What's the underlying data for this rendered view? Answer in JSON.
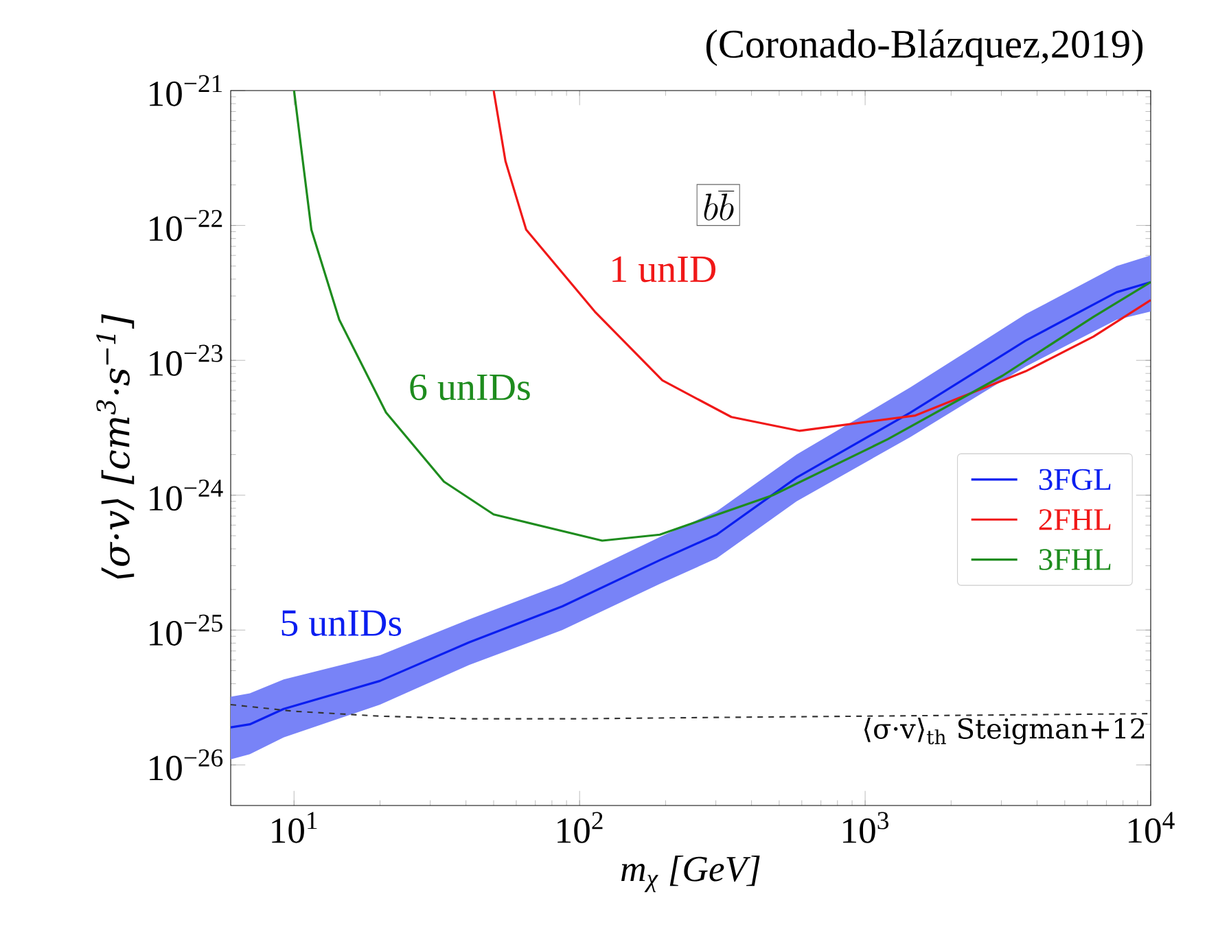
{
  "chart_data": {
    "type": "line",
    "title": "(Coronado-Blázquez,2019)",
    "xlabel": "m$_{χ}$ [GeV]",
    "ylabel": "⟨σ·v⟩ [cm$^{3}$·s$^{−1}$]",
    "log": "xy",
    "xlim": [
      6,
      10000
    ],
    "ylim": [
      5e-27,
      1e-21
    ],
    "xticks": [
      {
        "value": 10,
        "label": "10$^{1}$"
      },
      {
        "value": 100,
        "label": "10$^{2}$"
      },
      {
        "value": 1000,
        "label": "10$^{3}$"
      },
      {
        "value": 10000,
        "label": "10$^{4}$"
      }
    ],
    "yticks": [
      {
        "value": 1e-26,
        "label": "10$^{−26}$"
      },
      {
        "value": 1e-25,
        "label": "10$^{−25}$"
      },
      {
        "value": 1e-24,
        "label": "10$^{−24}$"
      },
      {
        "value": 1e-23,
        "label": "10$^{−23}$"
      },
      {
        "value": 1e-22,
        "label": "10$^{−22}$"
      },
      {
        "value": 1e-21,
        "label": "10$^{−21}$"
      }
    ],
    "legend": "right",
    "line_style": "solid",
    "marker": "none",
    "series": [
      {
        "name": "3FGL",
        "color": "#0a1ef0",
        "x": [
          6,
          7,
          9.2,
          20,
          41,
          87,
          191,
          302,
          575,
          1440,
          3650,
          7600,
          10000
        ],
        "values": [
          1.9e-26,
          2e-26,
          2.6e-26,
          4.2e-26,
          8.1e-26,
          1.5e-25,
          3.3e-25,
          5.1e-25,
          1.35e-24,
          4.1e-24,
          1.4e-23,
          3.2e-23,
          3.8e-23
        ],
        "lower": [
          1.1e-26,
          1.2e-26,
          1.6e-26,
          2.8e-26,
          5.5e-26,
          1e-25,
          2.2e-25,
          3.4e-25,
          9e-25,
          2.7e-24,
          9e-24,
          2e-23,
          2.3e-23
        ],
        "upper": [
          3.2e-26,
          3.4e-26,
          4.3e-26,
          6.5e-26,
          1.2e-25,
          2.2e-25,
          4.9e-25,
          7.6e-25,
          2e-24,
          6.3e-24,
          2.2e-23,
          5e-23,
          6e-23
        ]
      },
      {
        "name": "2FHL",
        "color": "#f01818",
        "x": [
          50,
          55,
          65,
          113,
          195,
          340,
          590,
          1500,
          3650,
          6300,
          10000
        ],
        "values": [
          1e-21,
          3e-22,
          9.3e-23,
          2.3e-23,
          7.1e-24,
          3.8e-24,
          3e-24,
          3.9e-24,
          8.3e-24,
          1.5e-23,
          2.8e-23
        ]
      },
      {
        "name": "3FHL",
        "color": "#1e8c1e",
        "x": [
          10,
          11.5,
          14.4,
          21,
          33.5,
          50,
          120,
          191,
          475,
          1200,
          3030,
          6300,
          10000
        ],
        "values": [
          1e-21,
          9.3e-23,
          2e-23,
          4.1e-24,
          1.26e-24,
          7.2e-25,
          4.6e-25,
          5.1e-25,
          1e-24,
          2.6e-24,
          7.7e-24,
          2.1e-23,
          3.8e-23
        ]
      },
      {
        "name": "⟨σ·v⟩$_{th}$ Steigman+12",
        "color": "#333333",
        "line_style": "dashed",
        "x": [
          6,
          10,
          20,
          40,
          100,
          300,
          1000,
          10000
        ],
        "values": [
          2.8e-26,
          2.5e-26,
          2.3e-26,
          2.2e-26,
          2.2e-26,
          2.25e-26,
          2.3e-26,
          2.4e-26
        ]
      }
    ],
    "annotations": [
      "5 unIDs",
      "1 unID",
      "6 unIDs",
      "b\\overline{b}"
    ]
  }
}
